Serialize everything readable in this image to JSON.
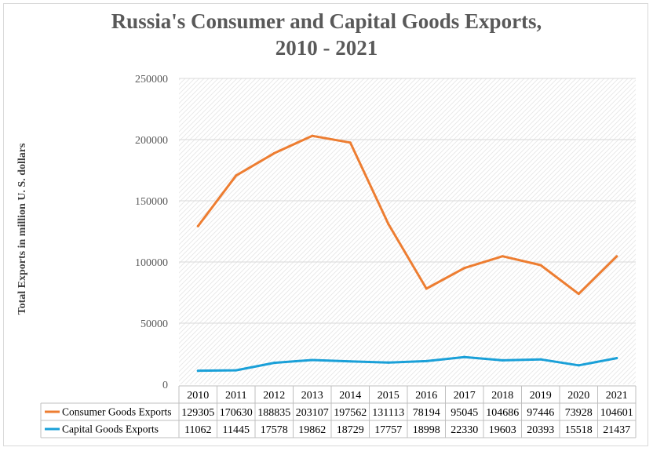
{
  "chart_data": {
    "type": "line",
    "title_line1": "Russia's Consumer and Capital Goods Exports,",
    "title_line2": "2010 - 2021",
    "ylabel": "Total Exports in million U. S. dollars",
    "xlabel": "",
    "ylim": [
      0,
      250000
    ],
    "yticks": [
      "0",
      "50000",
      "100000",
      "150000",
      "200000",
      "250000"
    ],
    "categories": [
      "2010",
      "2011",
      "2012",
      "2013",
      "2014",
      "2015",
      "2016",
      "2017",
      "2018",
      "2019",
      "2020",
      "2021"
    ],
    "series": [
      {
        "name": "Consumer Goods Exports",
        "color": "#ed7d31",
        "values": [
          129305,
          170630,
          188835,
          203107,
          197562,
          131113,
          78194,
          95045,
          104686,
          97446,
          73928,
          104601
        ]
      },
      {
        "name": "Capital Goods Exports",
        "color": "#1aa0d8",
        "values": [
          11062,
          11445,
          17578,
          19862,
          18729,
          17757,
          18998,
          22330,
          19603,
          20393,
          15518,
          21437
        ]
      }
    ],
    "grid": true,
    "legend": "data-table"
  }
}
